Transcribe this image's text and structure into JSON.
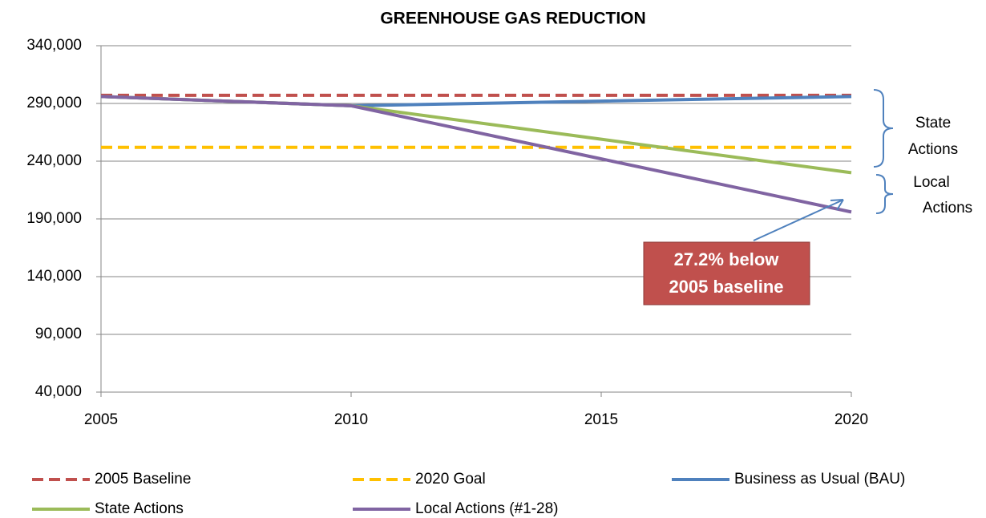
{
  "chart_data": {
    "type": "line",
    "title": "GREENHOUSE GAS REDUCTION",
    "x": [
      2005,
      2010,
      2015,
      2020
    ],
    "xlim": [
      2005,
      2020
    ],
    "xticks": [
      2005,
      2010,
      2015,
      2020
    ],
    "ylim": [
      40000,
      340000
    ],
    "yticks": [
      {
        "value": 40000,
        "label": "40,000"
      },
      {
        "value": 90000,
        "label": "90,000"
      },
      {
        "value": 140000,
        "label": "140,000"
      },
      {
        "value": 190000,
        "label": "190,000"
      },
      {
        "value": 240000,
        "label": "240,000"
      },
      {
        "value": 290000,
        "label": "290,000"
      },
      {
        "value": 340000,
        "label": "340,000"
      }
    ],
    "grid": true,
    "legend": "bottom",
    "series": [
      {
        "name": "2005 Baseline",
        "color": "#c0504d",
        "dash": true,
        "values": [
          297000,
          297000,
          297000,
          297000
        ]
      },
      {
        "name": "2020 Goal",
        "color": "#ffc000",
        "dash": true,
        "values": [
          252000,
          252000,
          252000,
          252000
        ]
      },
      {
        "name": "Business as Usual (BAU)",
        "color": "#4f81bd",
        "dash": false,
        "values": [
          296000,
          288000,
          292000,
          296000
        ]
      },
      {
        "name": "State Actions",
        "color": "#9bbb59",
        "dash": false,
        "values": [
          296000,
          288000,
          259000,
          230000
        ]
      },
      {
        "name": "Local Actions (#1-28)",
        "color": "#8064a2",
        "dash": false,
        "values": [
          296000,
          288000,
          242000,
          196000
        ]
      }
    ],
    "annotations": [
      {
        "text": [
          "State",
          "Actions"
        ]
      },
      {
        "text": [
          "Local",
          "Actions"
        ]
      },
      {
        "text": [
          "27.2% below",
          "2005 baseline"
        ]
      }
    ]
  }
}
